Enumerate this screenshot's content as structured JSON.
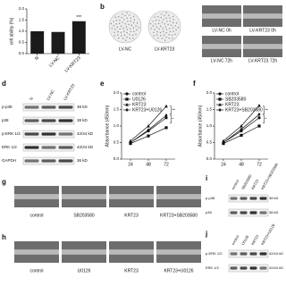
{
  "panel_labels": [
    "b",
    "d",
    "e",
    "f",
    "g",
    "h",
    "i",
    "j"
  ],
  "chart_data": [
    {
      "type": "bar",
      "ylabel": "cell ability (%)",
      "categories": [
        "N",
        "LV-NC",
        "LV-KRT23"
      ],
      "values": [
        1.0,
        0.97,
        1.45
      ],
      "color": "#1a1a1a",
      "ylim": [
        0,
        2
      ],
      "yticks": [
        {
          "value": 0,
          "label": "0.0"
        },
        0.5,
        {
          "value": 1,
          "label": "1.0"
        },
        1.5,
        {
          "value": 2,
          "label": "2.0"
        }
      ],
      "annotation": "***"
    },
    {
      "type": "line",
      "ylabel": "Absorbance (450nm)",
      "x": [
        24,
        48,
        72
      ],
      "xlim": [
        12,
        84
      ],
      "xticks": [
        24,
        48,
        72
      ],
      "ylim": [
        0,
        2
      ],
      "yticks": [
        {
          "value": 0,
          "label": "0.0"
        },
        0.5,
        {
          "value": 1,
          "label": "1.0"
        },
        1.5,
        {
          "value": 2,
          "label": "2.0"
        }
      ],
      "series": [
        {
          "name": "control",
          "color": "#111111",
          "marker": "circle",
          "values": [
            0.5,
            0.85,
            1.25
          ]
        },
        {
          "name": "U0126",
          "color": "#111111",
          "marker": "square",
          "values": [
            0.47,
            0.7,
            0.95
          ]
        },
        {
          "name": "KRT23",
          "color": "#111111",
          "marker": "triangle",
          "values": [
            0.55,
            1.0,
            1.6
          ]
        },
        {
          "name": "KRT23+U0126",
          "color": "#111111",
          "marker": "diamond",
          "values": [
            0.5,
            0.88,
            1.32
          ]
        }
      ],
      "annotations": [
        "**",
        "*"
      ]
    },
    {
      "type": "line",
      "ylabel": "Absorbance (450nm)",
      "x": [
        24,
        48,
        72
      ],
      "xlim": [
        12,
        84
      ],
      "xticks": [
        24,
        48,
        72
      ],
      "ylim": [
        0,
        2
      ],
      "yticks": [
        {
          "value": 0,
          "label": "0.0"
        },
        0.5,
        {
          "value": 1,
          "label": "1.0"
        },
        1.5,
        {
          "value": 2,
          "label": "2.0"
        }
      ],
      "series": [
        {
          "name": "control",
          "color": "#111111",
          "marker": "circle",
          "values": [
            0.5,
            0.85,
            1.25
          ]
        },
        {
          "name": "SB203580",
          "color": "#111111",
          "marker": "square",
          "values": [
            0.47,
            0.72,
            1.0
          ]
        },
        {
          "name": "KRT23",
          "color": "#111111",
          "marker": "triangle",
          "values": [
            0.55,
            1.0,
            1.62
          ]
        },
        {
          "name": "KRT23+SB203580",
          "color": "#111111",
          "marker": "diamond",
          "values": [
            0.5,
            0.9,
            1.35
          ]
        }
      ],
      "annotations": [
        "**",
        "*"
      ]
    }
  ],
  "colony": {
    "labels": [
      "LV-NC",
      "LV-KRT23"
    ]
  },
  "wound_b": {
    "labels": [
      "LV-NC 0h",
      "LV-KRT23 0h",
      "LV-NC 72h",
      "LV-KRT23 72h"
    ]
  },
  "blot_d": {
    "lanes": [
      "N",
      "LV-NC",
      "LV-KRT23"
    ],
    "rows": [
      {
        "name": "p-p38",
        "size": "38 kD"
      },
      {
        "name": "p38",
        "size": "38 kD"
      },
      {
        "name": "p-ERK 1/2",
        "size": "42/44 kD"
      },
      {
        "name": "ERK 1/2",
        "size": "42/44 kD"
      },
      {
        "name": "GAPDH",
        "size": "36 kD"
      }
    ]
  },
  "wound_g": {
    "labels": [
      "control",
      "SB203580",
      "KRT23",
      "KRT23+SB203580"
    ]
  },
  "wound_h": {
    "labels": [
      "control",
      "U0126",
      "KRT23",
      "KRT23+U0126"
    ]
  },
  "blot_i": {
    "lanes": [
      "control",
      "SB203580",
      "KRT23",
      "KRT23+SB203580"
    ],
    "rows": [
      {
        "name": "p-p38",
        "size": "38 kD"
      },
      {
        "name": "p38",
        "size": "38 kD"
      }
    ]
  },
  "blot_j": {
    "lanes": [
      "control",
      "U0126",
      "KRT23",
      "KRT23+U0126"
    ],
    "rows": [
      {
        "name": "p-ERK 1/2",
        "size": "42/44 kD"
      },
      {
        "name": "ERK 1/2",
        "size": "42/44 kD"
      }
    ]
  }
}
